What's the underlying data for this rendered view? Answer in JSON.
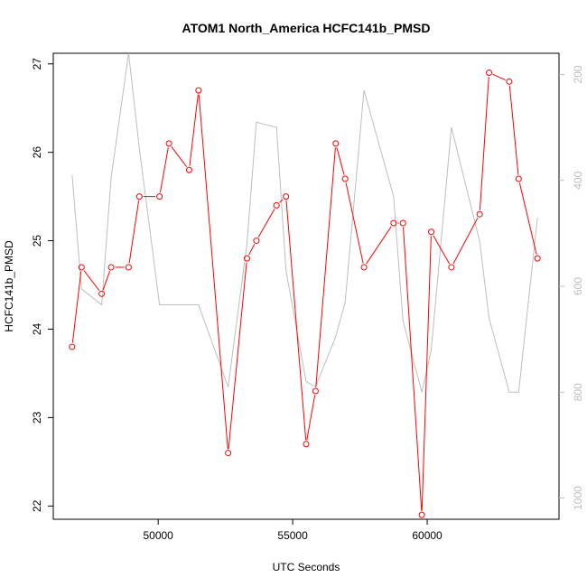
{
  "chart_data": {
    "type": "line",
    "title": "ATOM1 North_America HCFC141b_PMSD",
    "xlabel": "UTC Seconds",
    "ylabel": "HCFC141b_PMSD",
    "xlim": [
      46100,
      64900
    ],
    "ylim": [
      21.85,
      27.12
    ],
    "y2lim": [
      1040,
      160
    ],
    "y2_reversed": true,
    "x_ticks": [
      50000,
      55000,
      60000
    ],
    "y_ticks": [
      22,
      23,
      24,
      25,
      26,
      27
    ],
    "y2_ticks": [
      200,
      400,
      600,
      800,
      1000
    ],
    "colors": {
      "primary": "#ff0000",
      "secondary": "#bebebe",
      "axis": "#000000"
    },
    "grid": false,
    "series": [
      {
        "axis": "left",
        "color": "#ff0000",
        "marker": "open-circle",
        "points": [
          [
            46800,
            23.8
          ],
          [
            47150,
            24.7
          ],
          [
            47900,
            24.4
          ],
          [
            48250,
            24.7
          ],
          [
            48900,
            24.7
          ],
          [
            49300,
            25.5
          ],
          [
            50050,
            25.5
          ],
          [
            50400,
            26.1
          ],
          [
            51150,
            25.8
          ],
          [
            51500,
            26.7
          ],
          [
            52600,
            22.6
          ],
          [
            53300,
            24.8
          ],
          [
            53650,
            25.0
          ],
          [
            54400,
            25.4
          ],
          [
            54750,
            25.5
          ],
          [
            55500,
            22.7
          ],
          [
            55850,
            23.3
          ],
          [
            56600,
            26.1
          ],
          [
            56950,
            25.7
          ],
          [
            57650,
            24.7
          ],
          [
            58750,
            25.2
          ],
          [
            59100,
            25.2
          ],
          [
            59800,
            21.9
          ],
          [
            60150,
            25.1
          ],
          [
            60900,
            24.7
          ],
          [
            61950,
            25.3
          ],
          [
            62300,
            26.9
          ],
          [
            63050,
            26.8
          ],
          [
            63400,
            25.7
          ],
          [
            64100,
            24.8
          ]
        ]
      },
      {
        "axis": "right",
        "color": "#bebebe",
        "marker": "none",
        "points": [
          [
            46800,
            390
          ],
          [
            47150,
            605
          ],
          [
            47900,
            635
          ],
          [
            48250,
            395
          ],
          [
            48900,
            160
          ],
          [
            49300,
            340
          ],
          [
            50050,
            635
          ],
          [
            50400,
            635
          ],
          [
            51500,
            635
          ],
          [
            52600,
            790
          ],
          [
            53300,
            520
          ],
          [
            53650,
            290
          ],
          [
            54400,
            300
          ],
          [
            54750,
            570
          ],
          [
            55500,
            780
          ],
          [
            55850,
            790
          ],
          [
            56600,
            695
          ],
          [
            56950,
            630
          ],
          [
            57650,
            230
          ],
          [
            58750,
            430
          ],
          [
            59100,
            665
          ],
          [
            59800,
            800
          ],
          [
            60150,
            720
          ],
          [
            60900,
            300
          ],
          [
            61950,
            515
          ],
          [
            62300,
            660
          ],
          [
            63050,
            800
          ],
          [
            63400,
            800
          ],
          [
            64100,
            470
          ]
        ]
      }
    ]
  }
}
